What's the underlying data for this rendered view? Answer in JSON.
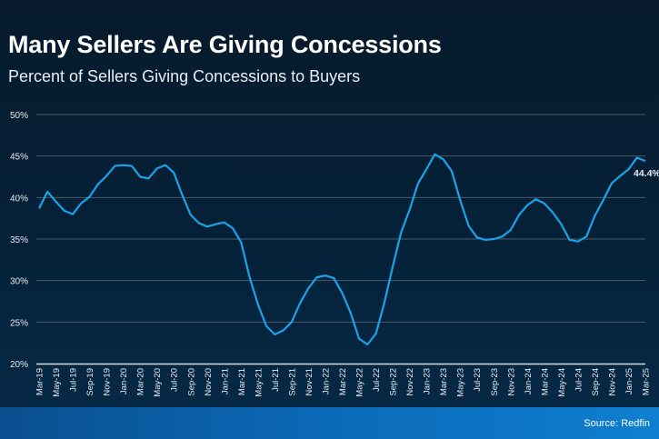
{
  "header": {
    "title": "Many Sellers Are Giving Concessions",
    "subtitle": "Percent of Sellers Giving Concessions to Buyers"
  },
  "footer": {
    "source": "Source: Redfin"
  },
  "colors": {
    "line": "#1aa3e8",
    "grid": "#4a5a68",
    "axis": "#d8dde2",
    "footer": "#0b6ab8"
  },
  "chart_data": {
    "type": "line",
    "title": "Many Sellers Are Giving Concessions",
    "subtitle": "Percent of Sellers Giving Concessions to Buyers",
    "xlabel": "",
    "ylabel": "",
    "ylim": [
      20,
      50
    ],
    "y_ticks": [
      "20%",
      "25%",
      "30%",
      "35%",
      "40%",
      "45%",
      "50%"
    ],
    "y_tick_values": [
      20,
      25,
      30,
      35,
      40,
      45,
      50
    ],
    "grid": true,
    "x": [
      "Mar-19",
      "Apr-19",
      "May-19",
      "Jun-19",
      "Jul-19",
      "Aug-19",
      "Sep-19",
      "Oct-19",
      "Nov-19",
      "Dec-19",
      "Jan-20",
      "Feb-20",
      "Mar-20",
      "Apr-20",
      "May-20",
      "Jun-20",
      "Jul-20",
      "Aug-20",
      "Sep-20",
      "Oct-20",
      "Nov-20",
      "Dec-20",
      "Jan-21",
      "Feb-21",
      "Mar-21",
      "Apr-21",
      "May-21",
      "Jun-21",
      "Jul-21",
      "Aug-21",
      "Sep-21",
      "Oct-21",
      "Nov-21",
      "Dec-21",
      "Jan-22",
      "Feb-22",
      "Mar-22",
      "Apr-22",
      "May-22",
      "Jun-22",
      "Jul-22",
      "Aug-22",
      "Sep-22",
      "Oct-22",
      "Nov-22",
      "Dec-22",
      "Jan-23",
      "Feb-23",
      "Mar-23",
      "Apr-23",
      "May-23",
      "Jun-23",
      "Jul-23",
      "Aug-23",
      "Sep-23",
      "Oct-23",
      "Nov-23",
      "Dec-23",
      "Jan-24",
      "Feb-24",
      "Mar-24",
      "Apr-24",
      "May-24",
      "Jun-24",
      "Jul-24",
      "Aug-24",
      "Sep-24",
      "Oct-24",
      "Nov-24",
      "Dec-24",
      "Jan-25",
      "Feb-25",
      "Mar-25"
    ],
    "x_tick_labels": [
      "Mar-19",
      "May-19",
      "Jul-19",
      "Sep-19",
      "Nov-19",
      "Jan-20",
      "Mar-20",
      "May-20",
      "Jul-20",
      "Sep-20",
      "Nov-20",
      "Jan-21",
      "Mar-21",
      "May-21",
      "Jul-21",
      "Sep-21",
      "Nov-21",
      "Jan-22",
      "Mar-22",
      "May-22",
      "Jul-22",
      "Sep-22",
      "Nov-22",
      "Jan-23",
      "Mar-23",
      "May-23",
      "Jul-23",
      "Sep-23",
      "Nov-23",
      "Jan-24",
      "Mar-24",
      "May-24",
      "Jul-24",
      "Sep-24",
      "Nov-24",
      "Jan-25",
      "Mar-25"
    ],
    "series": [
      {
        "values": [
          38.7,
          40.7,
          39.5,
          38.4,
          38.0,
          39.3,
          40.1,
          41.6,
          42.6,
          43.8,
          43.9,
          43.8,
          42.5,
          42.3,
          43.5,
          43.9,
          43.0,
          40.3,
          37.9,
          36.9,
          36.5,
          36.8,
          37.0,
          36.3,
          34.6,
          30.4,
          27.1,
          24.5,
          23.5,
          24.0,
          25.0,
          27.3,
          29.1,
          30.4,
          30.6,
          30.3,
          28.5,
          26.1,
          23.0,
          22.3,
          23.6,
          27.3,
          31.7,
          35.8,
          38.5,
          41.7,
          43.4,
          45.2,
          44.6,
          43.2,
          39.7,
          36.6,
          35.2,
          34.9,
          35.0,
          35.3,
          36.1,
          37.9,
          39.1,
          39.8,
          39.3,
          38.2,
          36.8,
          34.9,
          34.7,
          35.3,
          37.8,
          39.7,
          41.7,
          42.6,
          43.4,
          44.8,
          44.4
        ]
      }
    ],
    "annotations": [
      {
        "x": "Mar-25",
        "text": "44.4%"
      }
    ]
  }
}
